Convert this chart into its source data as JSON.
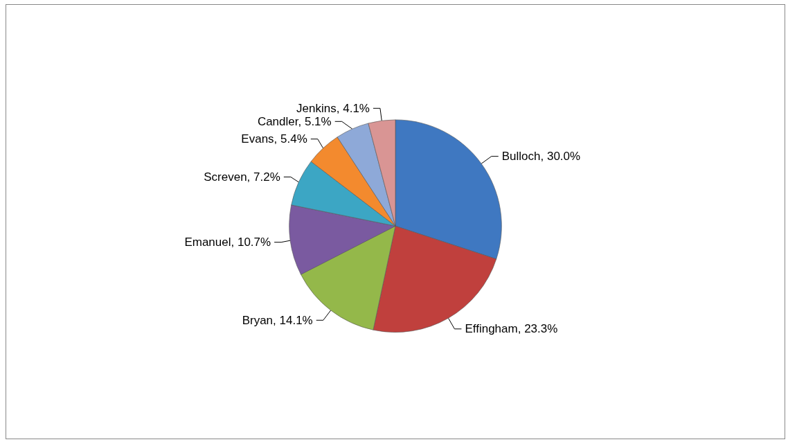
{
  "chart_data": {
    "type": "pie",
    "categories": [
      "Bulloch",
      "Effingham",
      "Bryan",
      "Emanuel",
      "Screven",
      "Evans",
      "Candler",
      "Jenkins"
    ],
    "values": [
      30.0,
      23.3,
      14.1,
      10.7,
      7.2,
      5.4,
      5.1,
      4.1
    ],
    "value_labels": [
      "30.0%",
      "23.3%",
      "14.1%",
      "10.7%",
      "7.2%",
      "5.4%",
      "5.1%",
      "4.1%"
    ],
    "colors": [
      "#3f78c1",
      "#c0403d",
      "#94b84a",
      "#7a5aa0",
      "#3ca6c4",
      "#f38a2e",
      "#8ea9d8",
      "#d99594"
    ],
    "legend": false
  }
}
